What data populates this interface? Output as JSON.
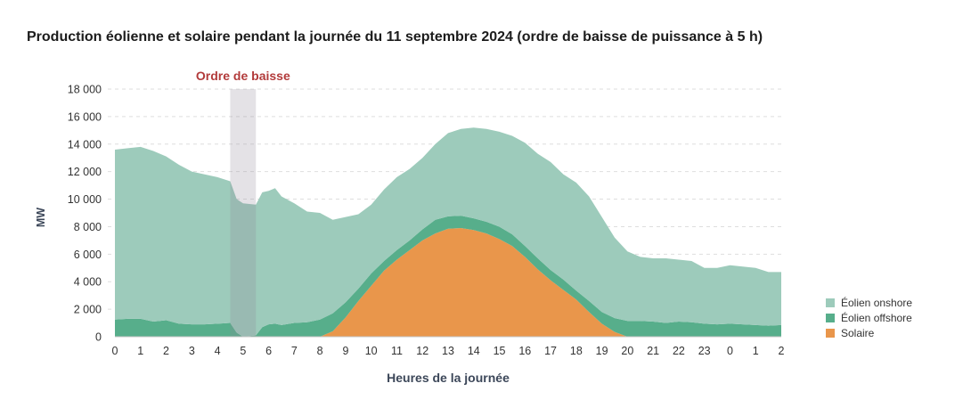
{
  "chart_data": {
    "type": "area",
    "stacked": true,
    "title": "Production éolienne et solaire pendant la journée du 11 septembre 2024 (ordre de baisse de puissance à 5 h)",
    "xlabel": "Heures de la journée",
    "ylabel": "MW",
    "ylim": [
      0,
      18000
    ],
    "yticks": [
      0,
      2000,
      4000,
      6000,
      8000,
      10000,
      12000,
      14000,
      16000,
      18000
    ],
    "ytick_labels": [
      "0",
      "2 000",
      "4 000",
      "6 000",
      "8 000",
      "10 000",
      "12 000",
      "14 000",
      "16 000",
      "18 000"
    ],
    "xtick_labels": [
      "0",
      "1",
      "2",
      "3",
      "4",
      "5",
      "6",
      "7",
      "8",
      "9",
      "10",
      "11",
      "12",
      "13",
      "14",
      "15",
      "16",
      "17",
      "18",
      "19",
      "20",
      "21",
      "22",
      "23",
      "0",
      "1",
      "2"
    ],
    "grid": true,
    "legend_position": "bottom-right",
    "x": [
      0,
      0.5,
      1,
      1.5,
      2,
      2.5,
      3,
      3.5,
      4,
      4.5,
      4.75,
      5,
      5.5,
      5.75,
      6,
      6.25,
      6.5,
      7,
      7.5,
      8,
      8.5,
      9,
      9.5,
      10,
      10.5,
      11,
      11.5,
      12,
      12.5,
      13,
      13.5,
      14,
      14.5,
      15,
      15.5,
      16,
      16.5,
      17,
      17.5,
      18,
      18.5,
      19,
      19.5,
      20,
      20.5,
      21,
      21.5,
      22,
      22.5,
      23,
      23.5,
      0,
      0.5,
      1,
      1.5,
      2
    ],
    "series": [
      {
        "name": "Éolien onshore",
        "color": "#9dcbbb",
        "values": [
          12350,
          12400,
          12500,
          12400,
          11900,
          11550,
          11100,
          10900,
          10650,
          10300,
          9700,
          9700,
          9500,
          9800,
          9700,
          9850,
          9350,
          8700,
          8050,
          7750,
          6800,
          6200,
          5400,
          5000,
          5200,
          5300,
          5200,
          5200,
          5500,
          6050,
          6300,
          6600,
          6750,
          6900,
          7150,
          7500,
          7600,
          7850,
          7650,
          7850,
          7600,
          6900,
          5850,
          5050,
          4650,
          4600,
          4700,
          4500,
          4450,
          4050,
          4100,
          4250,
          4200,
          4150,
          3900,
          3850
        ]
      },
      {
        "name": "Éolien offshore",
        "color": "#57ae8b",
        "values": [
          1250,
          1300,
          1300,
          1100,
          1200,
          950,
          900,
          900,
          950,
          1000,
          300,
          0,
          100,
          700,
          900,
          950,
          850,
          1000,
          1050,
          1250,
          1300,
          1100,
          900,
          900,
          700,
          700,
          700,
          800,
          1000,
          900,
          900,
          850,
          850,
          900,
          850,
          800,
          800,
          750,
          750,
          650,
          800,
          850,
          1000,
          1150,
          1150,
          1100,
          1000,
          1100,
          1050,
          950,
          900,
          950,
          900,
          850,
          800,
          850
        ]
      },
      {
        "name": "Solaire",
        "color": "#e9964b",
        "values": [
          0,
          0,
          0,
          0,
          0,
          0,
          0,
          0,
          0,
          0,
          0,
          0,
          0,
          0,
          0,
          0,
          0,
          0,
          0,
          0,
          400,
          1400,
          2600,
          3700,
          4800,
          5600,
          6300,
          7000,
          7500,
          7850,
          7900,
          7750,
          7500,
          7100,
          6600,
          5800,
          4900,
          4100,
          3400,
          2700,
          1800,
          950,
          350,
          0,
          0,
          0,
          0,
          0,
          0,
          0,
          0,
          0,
          0,
          0,
          0,
          0
        ]
      }
    ],
    "annotation": {
      "label": "Ordre de baisse",
      "from": 4.5,
      "to": 5.5,
      "label_color": "#b23b3b",
      "band_color": "#8e8498"
    }
  }
}
